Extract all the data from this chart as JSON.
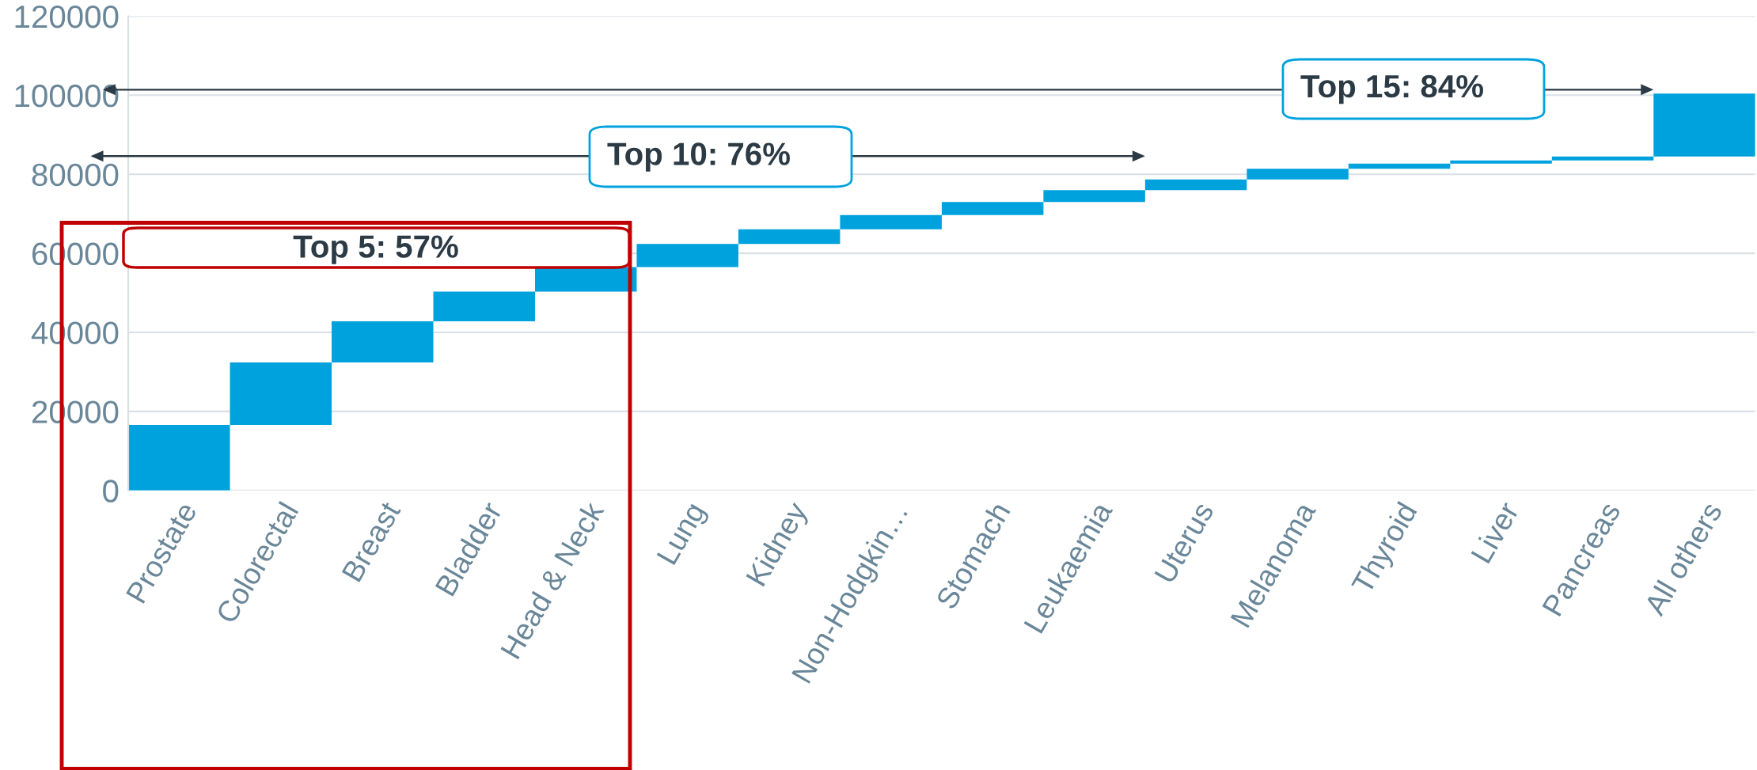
{
  "chart_data": {
    "type": "bar",
    "categories": [
      "Prostate",
      "Colorectal",
      "Breast",
      "Bladder",
      "Head & Neck",
      "Lung",
      "Kidney",
      "Non-Hodgkin…",
      "Stomach",
      "Leukaemia",
      "Uterus",
      "Melanoma",
      "Thyroid",
      "Liver",
      "Pancreas",
      "All others"
    ],
    "values": [
      16600,
      15800,
      10400,
      7500,
      6200,
      5900,
      3700,
      3600,
      3300,
      3000,
      2700,
      2700,
      1300,
      800,
      1000,
      15900
    ],
    "base": [
      0,
      16600,
      32400,
      42800,
      50300,
      56500,
      62400,
      66100,
      69700,
      73000,
      76000,
      78700,
      81400,
      82700,
      83500,
      84500
    ],
    "color": "#00a2de",
    "ylim": [
      0,
      120000
    ],
    "yticks": [
      0,
      20000,
      40000,
      60000,
      80000,
      100000,
      120000
    ],
    "grid": "y",
    "annotations": [
      "Top 5: 57%",
      "Top 10: 76%",
      "Top 15: 84%"
    ]
  }
}
